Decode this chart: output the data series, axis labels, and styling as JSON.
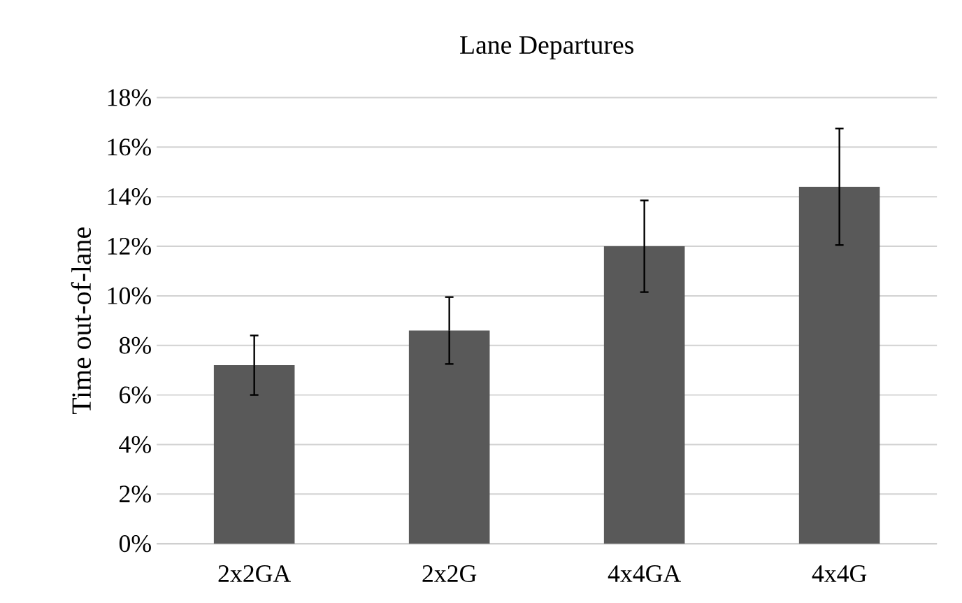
{
  "chart_data": {
    "type": "bar",
    "title": "Lane Departures",
    "ylabel": "Time out-of-lane",
    "categories": [
      "2x2GA",
      "2x2G",
      "4x4GA",
      "4x4G"
    ],
    "values": [
      7.2,
      8.6,
      12.0,
      14.4
    ],
    "errors": [
      1.2,
      1.35,
      1.85,
      2.35
    ],
    "color": "#595959",
    "ylim": [
      0,
      18
    ],
    "yticks": [
      {
        "value": 0,
        "label": "0%"
      },
      {
        "value": 2,
        "label": "2%"
      },
      {
        "value": 4,
        "label": "4%"
      },
      {
        "value": 6,
        "label": "6%"
      },
      {
        "value": 8,
        "label": "8%"
      },
      {
        "value": 10,
        "label": "10%"
      },
      {
        "value": 12,
        "label": "12%"
      },
      {
        "value": 14,
        "label": "14%"
      },
      {
        "value": 16,
        "label": "16%"
      },
      {
        "value": 18,
        "label": "18%"
      }
    ],
    "grid": "y"
  }
}
